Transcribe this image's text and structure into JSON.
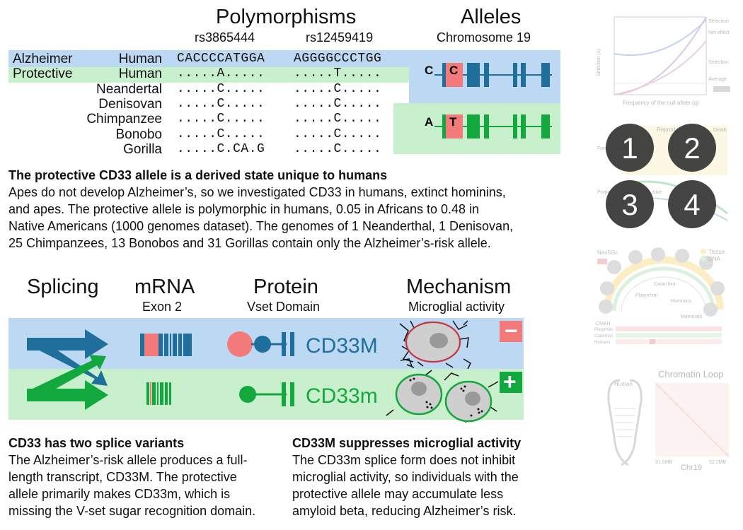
{
  "colors": {
    "blue_band": "#bcd8f2",
    "green_band": "#c9f0cd",
    "dark_blue": "#1f6e9c",
    "green": "#12a83d",
    "pink": "#f27a7a",
    "cell_fill": "#cfcfcf",
    "nucleus": "#999999"
  },
  "top": {
    "polymorphisms_title": "Polymorphisms",
    "snp1": "rs3865444",
    "snp2": "rs12459419",
    "alleles_title": "Alleles",
    "chromosome": "Chromosome 19",
    "rows": [
      {
        "group": "Alzheimer",
        "species": "Human",
        "seq1": "CACCCCATGGA",
        "seq2": "AGGGGCCCTGG"
      },
      {
        "group": "Protective",
        "species": "Human",
        "seq1": ".....A.....",
        "seq2": ".....T....."
      },
      {
        "group": "",
        "species": "Neandertal",
        "seq1": ".....C.....",
        "seq2": ".....C....."
      },
      {
        "group": "",
        "species": "Denisovan",
        "seq1": ".....C.....",
        "seq2": ".....C....."
      },
      {
        "group": "",
        "species": "Chimpanzee",
        "seq1": ".....C.....",
        "seq2": ".....C....."
      },
      {
        "group": "",
        "species": "Bonobo",
        "seq1": ".....C.....",
        "seq2": ".....C....."
      },
      {
        "group": "",
        "species": "Gorilla",
        "seq1": ".....C.CA.G",
        "seq2": ".....C....."
      }
    ],
    "allele_blue": {
      "left": "C",
      "box": "C"
    },
    "allele_green": {
      "left": "A",
      "box": "T"
    }
  },
  "section1": {
    "heading": "The protective CD33 allele is a derived state unique to humans",
    "lines": [
      "Apes do not develop Alzheimer’s, so we investigated CD33 in humans, extinct hominins,",
      "and apes. The protective allele is polymorphic in humans, 0.05 in Africans to 0.48 in",
      "Native Americans (1000 genomes dataset). The genomes of 1 Neanderthal, 1 Denisovan,",
      "25 Chimpanzees, 13 Bonobos and 31 Gorillas contain only the Alzheimer’s-risk allele."
    ]
  },
  "mid": {
    "splicing": "Splicing",
    "mrna": "mRNA",
    "mrna_sub": "Exon 2",
    "protein": "Protein",
    "protein_sub": "Vset Domain",
    "mechanism": "Mechanism",
    "mechanism_sub": "Microglial activity",
    "cd33M": "CD33M",
    "cd33m": "CD33m",
    "minus": "−",
    "plus": "+"
  },
  "section2": {
    "heading": "CD33 has two splice variants",
    "lines": [
      "The Alzheimer’s-risk allele produces a full-",
      "length transcript, CD33M. The protective",
      "allele primarily makes CD33m, which is",
      "missing the V-set sugar recognition domain."
    ]
  },
  "section3": {
    "heading": "CD33M suppresses microglial activity",
    "lines": [
      "The CD33m splice form does not inhibit",
      "microglial activity, so individuals with the",
      "protective allele may accumulate less",
      "amyloid beta, reducing Alzheimer’s risk."
    ]
  },
  "side": {
    "panel1_texts": [
      "Selection (s)",
      "Frequency of the null allele (q)",
      "Selection",
      "Net effect",
      "Average",
      "Selection"
    ],
    "panel2_numbers": [
      "1",
      "2",
      "3",
      "4"
    ],
    "panel2_texts": [
      "Reproduction",
      "Death",
      "Force of selection",
      "Proportion of generation alive"
    ],
    "panel3_texts": [
      "Neu5Gc",
      "Tissue",
      "DNA",
      "Catarrhini",
      "Platyrrhini",
      "Hominins",
      "Mammals",
      "CMAH",
      "Platyrrhini",
      "Catarrhini",
      "Humans"
    ],
    "panel4_title": "Chromatin Loop",
    "panel4_texts": [
      "Human",
      "51.6MB",
      "52.2MB",
      "Chr19"
    ]
  }
}
